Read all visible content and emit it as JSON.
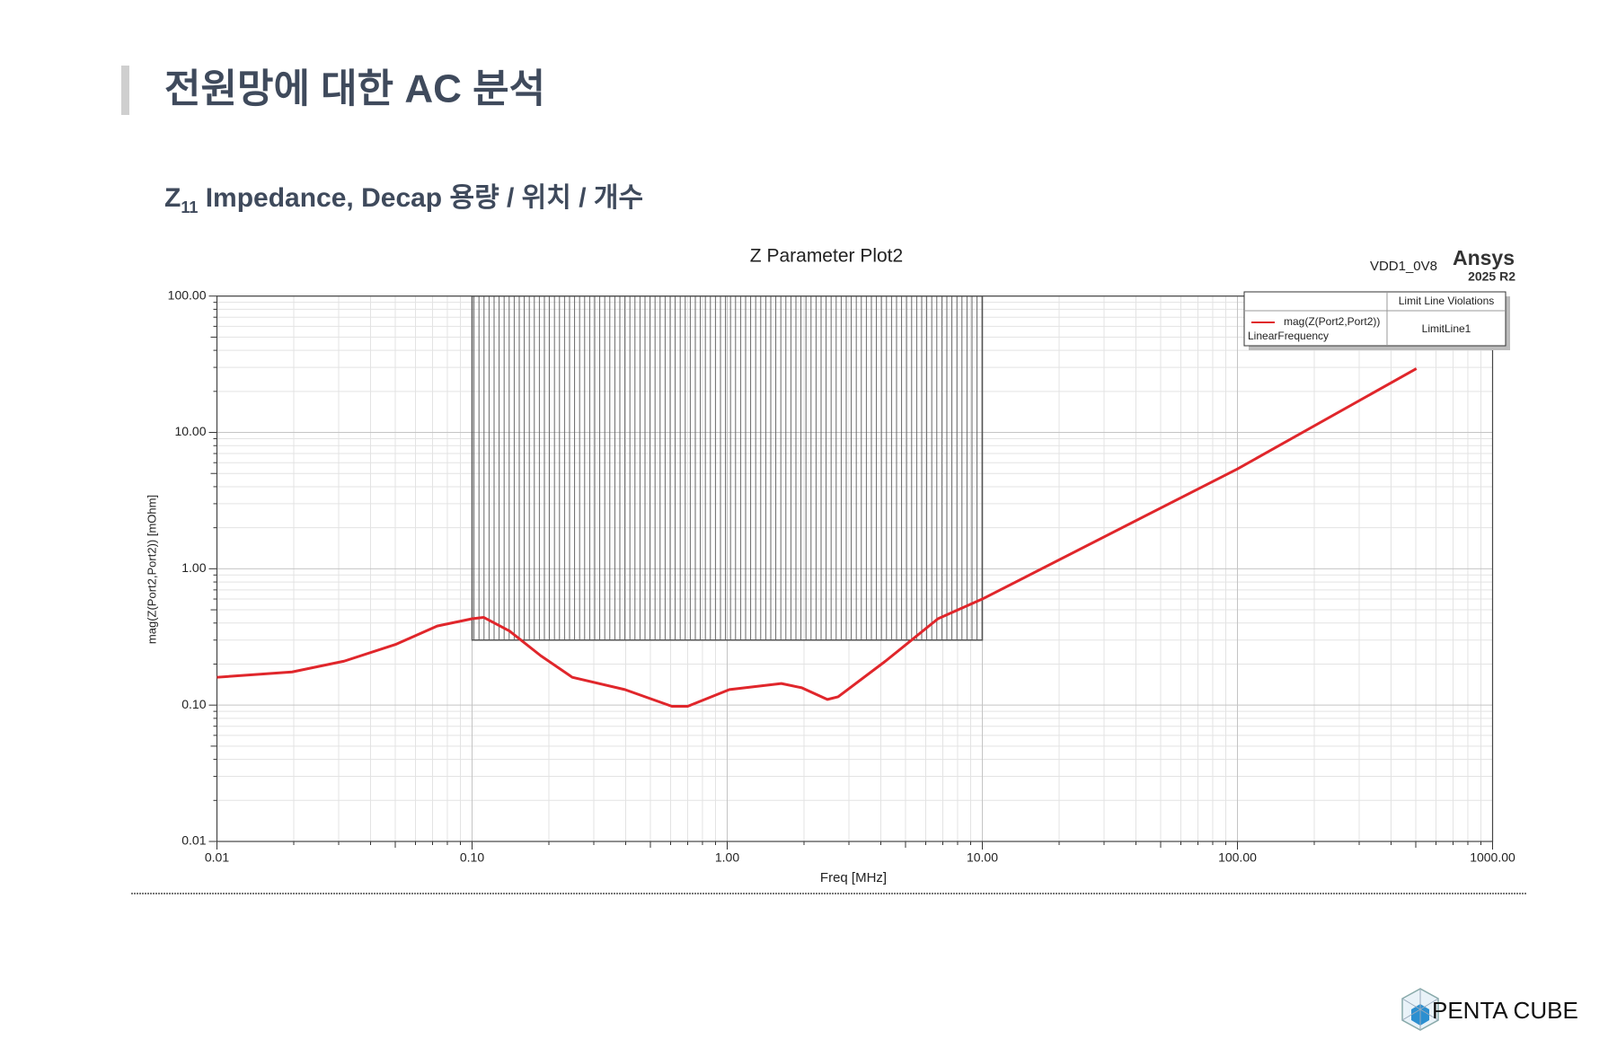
{
  "slide": {
    "title": "전원망에 대한  AC  분석",
    "subtitle": {
      "symbol": "Z",
      "subscript": "11",
      "text": " Impedance, Decap  용량  /  위치  /  개수"
    },
    "logo": "PENTA CUBE"
  },
  "chart_data": {
    "type": "line",
    "title": "Z Parameter Plot2",
    "design": "VDD1_0V8",
    "brand": "Ansys",
    "version": "2025 R2",
    "x_label": "Freq [MHz]",
    "y_label": "mag(Z(Port2,Port2)) [mOhm]",
    "x_log": true,
    "y_log": true,
    "grid": true,
    "minor_grid": true,
    "xlim": [
      0.01,
      1000
    ],
    "ylim": [
      0.01,
      100
    ],
    "xticks": [
      0.01,
      {
        "value": 0.1,
        "label": "0.10"
      },
      {
        "value": 1,
        "label": "1.00"
      },
      {
        "value": 10,
        "label": "10.00"
      },
      {
        "value": 100,
        "label": "100.00"
      },
      {
        "value": 1000,
        "label": "1000.00"
      }
    ],
    "yticks": [
      0.01,
      {
        "value": 0.1,
        "label": "0.10"
      },
      {
        "value": 1,
        "label": "1.00"
      },
      {
        "value": 10,
        "label": "10.00"
      },
      {
        "value": 100,
        "label": "100.00"
      }
    ],
    "legend_header": "Limit Line Violations",
    "legend_note": "LinearFrequency",
    "legend": "top-right",
    "series": [
      {
        "name": "mag(Z(Port2,Port2))",
        "color": "#e0262b",
        "x": [
          0.01,
          0.0197,
          0.0315,
          0.0505,
          0.073,
          0.1,
          0.111,
          0.14,
          0.186,
          0.247,
          0.397,
          0.607,
          0.7,
          1.02,
          1.63,
          1.96,
          2.47,
          2.72,
          4.17,
          6.7,
          10,
          100,
          503
        ],
        "values": [
          0.16,
          0.175,
          0.21,
          0.28,
          0.38,
          0.43,
          0.44,
          0.35,
          0.23,
          0.16,
          0.13,
          0.098,
          0.098,
          0.13,
          0.144,
          0.134,
          0.11,
          0.115,
          0.21,
          0.43,
          0.6,
          5.4,
          29.4
        ]
      },
      {
        "name": "LimitLine1",
        "color": "#555555",
        "limit": true,
        "x": [
          0.1,
          0.1,
          10,
          10
        ],
        "values": [
          100,
          0.3,
          0.3,
          100
        ]
      }
    ]
  }
}
